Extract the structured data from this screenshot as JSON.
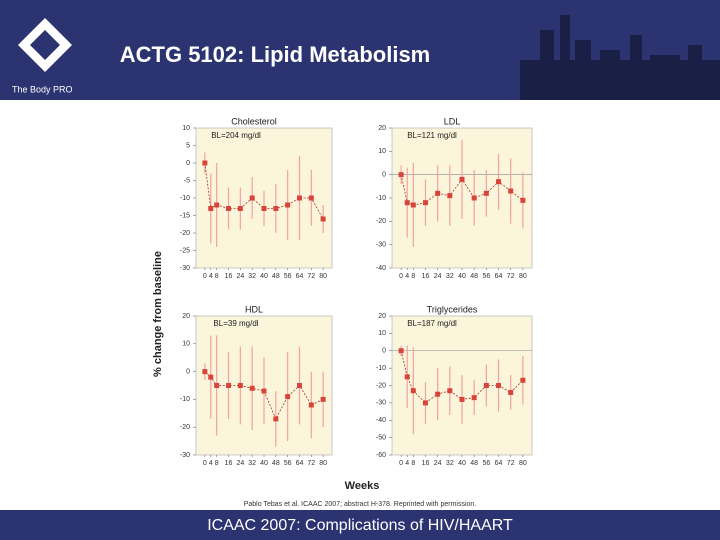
{
  "slide": {
    "title": "ACTG 5102: Lipid Metabolism",
    "brand": "The Body PRO",
    "y_label": "% change from baseline",
    "x_label": "Weeks",
    "citation": "Pablo Tebas et al. ICAAC 2007; abstract H-378. Reprinted with permission.",
    "footer": "ICAAC 2007: Complications of HIV/HAART"
  },
  "chart_data": [
    {
      "type": "line",
      "title": "Cholesterol",
      "subtitle": "BL=204 mg/dl",
      "x": [
        0,
        4,
        8,
        16,
        24,
        32,
        40,
        48,
        56,
        64,
        72,
        80
      ],
      "values": [
        0,
        -13,
        -12,
        -13,
        -13,
        -10,
        -13,
        -13,
        -12,
        -10,
        -10,
        -16
      ],
      "errors": [
        3,
        10,
        12,
        6,
        6,
        6,
        5,
        7,
        10,
        12,
        8,
        4
      ],
      "xlim": [
        -6,
        86
      ],
      "xticks": [
        0,
        4,
        8,
        16,
        24,
        32,
        40,
        48,
        56,
        64,
        72,
        80
      ],
      "ylim": [
        -30,
        10
      ],
      "yticks": [
        10,
        5,
        0,
        -5,
        -10,
        -15,
        -20,
        -25,
        -30
      ],
      "color": "#d9443a",
      "error_color": "#f0a3a0",
      "zero_line": false
    },
    {
      "type": "line",
      "title": "LDL",
      "subtitle": "BL=121 mg/dl",
      "x": [
        0,
        4,
        8,
        16,
        24,
        32,
        40,
        48,
        56,
        64,
        72,
        80
      ],
      "values": [
        0,
        -12,
        -13,
        -12,
        -8,
        -9,
        -2,
        -10,
        -8,
        -3,
        -7,
        -11
      ],
      "errors": [
        4,
        15,
        18,
        10,
        12,
        13,
        17,
        12,
        10,
        12,
        14,
        12
      ],
      "xlim": [
        -6,
        86
      ],
      "xticks": [
        0,
        4,
        8,
        16,
        24,
        32,
        40,
        48,
        56,
        64,
        72,
        80
      ],
      "ylim": [
        -40,
        20
      ],
      "yticks": [
        20,
        10,
        0,
        -10,
        -20,
        -30,
        -40
      ],
      "color": "#d9443a",
      "error_color": "#f0a3a0",
      "zero_line": true
    },
    {
      "type": "line",
      "title": "HDL",
      "subtitle": "BL=39 mg/dl",
      "x": [
        0,
        4,
        8,
        16,
        24,
        32,
        40,
        48,
        56,
        64,
        72,
        80
      ],
      "values": [
        0,
        -2,
        -5,
        -5,
        -5,
        -6,
        -7,
        -17,
        -9,
        -5,
        -12,
        -10
      ],
      "errors": [
        3,
        15,
        18,
        12,
        14,
        15,
        12,
        10,
        16,
        14,
        12,
        10
      ],
      "xlim": [
        -6,
        86
      ],
      "xticks": [
        0,
        4,
        8,
        16,
        24,
        32,
        40,
        48,
        56,
        64,
        72,
        80
      ],
      "ylim": [
        -30,
        20
      ],
      "yticks": [
        20,
        10,
        0,
        -10,
        -20,
        -30
      ],
      "color": "#d9443a",
      "error_color": "#f0a3a0",
      "zero_line": false
    },
    {
      "type": "line",
      "title": "Triglycerides",
      "subtitle": "BL=187 mg/dl",
      "x": [
        0,
        4,
        8,
        16,
        24,
        32,
        40,
        48,
        56,
        64,
        72,
        80
      ],
      "values": [
        0,
        -15,
        -23,
        -30,
        -25,
        -23,
        -28,
        -27,
        -20,
        -20,
        -24,
        -17
      ],
      "errors": [
        3,
        18,
        25,
        12,
        15,
        14,
        14,
        10,
        12,
        15,
        10,
        14
      ],
      "xlim": [
        -6,
        86
      ],
      "xticks": [
        0,
        4,
        8,
        16,
        24,
        32,
        40,
        48,
        56,
        64,
        72,
        80
      ],
      "ylim": [
        -60,
        20
      ],
      "yticks": [
        20,
        10,
        0,
        -10,
        -20,
        -30,
        -40,
        -50,
        -60
      ],
      "color": "#d9443a",
      "error_color": "#f0a3a0",
      "zero_line": true
    }
  ]
}
